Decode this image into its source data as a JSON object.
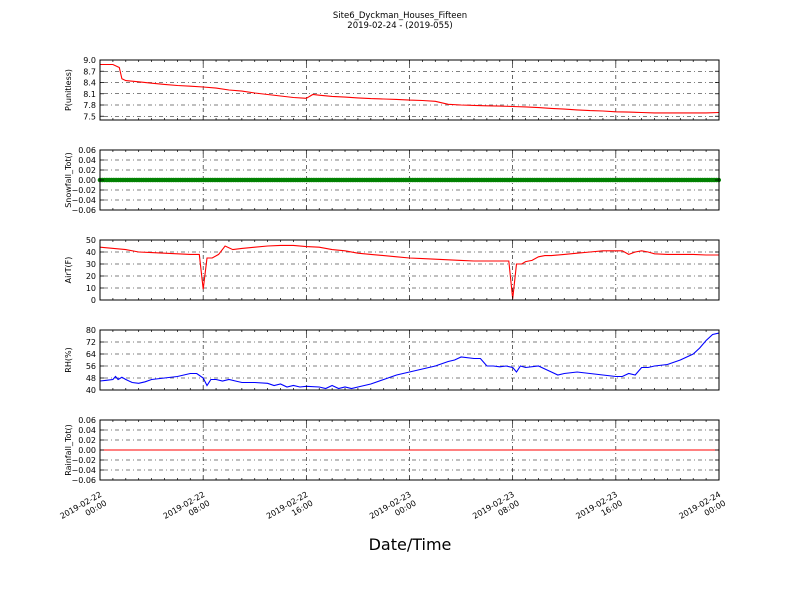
{
  "figure": {
    "title_line1": "Site6_Dyckman_Houses_Fifteen",
    "title_line2": "2019-02-24 - (2019-055)",
    "xlabel": "Date/Time"
  },
  "chart_data": [
    {
      "type": "line",
      "ylabel": "P(unitless)",
      "ylim": [
        7.4,
        9.0
      ],
      "yticks": [
        "7.5",
        "7.8",
        "8.1",
        "8.4",
        "8.7",
        "9.0"
      ],
      "ytick_values": [
        7.5,
        7.8,
        8.1,
        8.4,
        8.7,
        9.0
      ],
      "grid": true,
      "series": [
        {
          "color": "#ff0000",
          "points": [
            [
              0,
              8.88
            ],
            [
              1,
              8.88
            ],
            [
              1.5,
              8.8
            ],
            [
              1.7,
              8.5
            ],
            [
              2,
              8.45
            ],
            [
              3,
              8.42
            ],
            [
              4,
              8.38
            ],
            [
              5,
              8.35
            ],
            [
              6,
              8.32
            ],
            [
              7,
              8.3
            ],
            [
              8,
              8.28
            ],
            [
              9,
              8.25
            ],
            [
              10,
              8.2
            ],
            [
              11,
              8.17
            ],
            [
              12,
              8.12
            ],
            [
              13,
              8.08
            ],
            [
              14,
              8.04
            ],
            [
              15,
              8.0
            ],
            [
              16,
              7.98
            ],
            [
              16.5,
              8.08
            ],
            [
              17,
              8.06
            ],
            [
              18,
              8.03
            ],
            [
              19,
              8.01
            ],
            [
              20,
              7.99
            ],
            [
              21,
              7.97
            ],
            [
              22,
              7.96
            ],
            [
              23,
              7.95
            ],
            [
              24,
              7.93
            ],
            [
              25,
              7.92
            ],
            [
              26,
              7.9
            ],
            [
              27,
              7.82
            ],
            [
              28,
              7.8
            ],
            [
              29,
              7.79
            ],
            [
              30,
              7.78
            ],
            [
              31,
              7.77
            ],
            [
              32,
              7.76
            ],
            [
              33,
              7.75
            ],
            [
              34,
              7.73
            ],
            [
              35,
              7.71
            ],
            [
              36,
              7.69
            ],
            [
              37,
              7.67
            ],
            [
              38,
              7.65
            ],
            [
              39,
              7.64
            ],
            [
              40,
              7.62
            ],
            [
              41,
              7.61
            ],
            [
              42,
              7.6
            ],
            [
              43,
              7.59
            ],
            [
              44,
              7.59
            ],
            [
              45,
              7.59
            ],
            [
              46,
              7.59
            ],
            [
              47,
              7.59
            ],
            [
              48,
              7.6
            ]
          ]
        }
      ]
    },
    {
      "type": "line",
      "ylabel": "Snowfall_Tot()",
      "ylim": [
        -0.06,
        0.06
      ],
      "yticks": [
        "−0.06",
        "−0.04",
        "−0.02",
        "0.00",
        "0.02",
        "0.04",
        "0.06"
      ],
      "ytick_values": [
        -0.06,
        -0.04,
        -0.02,
        0.0,
        0.02,
        0.04,
        0.06
      ],
      "grid": true,
      "series": [
        {
          "color": "#008000",
          "marker": "circle",
          "points": [
            [
              0,
              0
            ],
            [
              48,
              0
            ]
          ]
        }
      ]
    },
    {
      "type": "line",
      "ylabel": "AirT(F)",
      "ylim": [
        0,
        50
      ],
      "yticks": [
        "0",
        "10",
        "20",
        "30",
        "40",
        "50"
      ],
      "ytick_values": [
        0,
        10,
        20,
        30,
        40,
        50
      ],
      "grid": true,
      "series": [
        {
          "color": "#ff0000",
          "points": [
            [
              0,
              44
            ],
            [
              2,
              42
            ],
            [
              3,
              40
            ],
            [
              4,
              39.5
            ],
            [
              5,
              39
            ],
            [
              6,
              38.5
            ],
            [
              7,
              38
            ],
            [
              7.7,
              38
            ],
            [
              8,
              9
            ],
            [
              8.3,
              35
            ],
            [
              8.7,
              35
            ],
            [
              9.2,
              38
            ],
            [
              9.7,
              45
            ],
            [
              10.3,
              42
            ],
            [
              11,
              43
            ],
            [
              12,
              44
            ],
            [
              13,
              45
            ],
            [
              14,
              45.5
            ],
            [
              15,
              45.5
            ],
            [
              16,
              44.5
            ],
            [
              17,
              44
            ],
            [
              18,
              42
            ],
            [
              19,
              41
            ],
            [
              20,
              39
            ],
            [
              21,
              38
            ],
            [
              22,
              37
            ],
            [
              23,
              36
            ],
            [
              24,
              35
            ],
            [
              25,
              34.5
            ],
            [
              26,
              34
            ],
            [
              27,
              33.5
            ],
            [
              28,
              33
            ],
            [
              29,
              32.5
            ],
            [
              30,
              32.5
            ],
            [
              31.7,
              32.5
            ],
            [
              32,
              1
            ],
            [
              32.3,
              30
            ],
            [
              32.7,
              30
            ],
            [
              33,
              32
            ],
            [
              33.5,
              33
            ],
            [
              34,
              36
            ],
            [
              34.5,
              37
            ],
            [
              35,
              37
            ],
            [
              36,
              38
            ],
            [
              37,
              39
            ],
            [
              38,
              40
            ],
            [
              39,
              41
            ],
            [
              40,
              41
            ],
            [
              40.5,
              41
            ],
            [
              41,
              38
            ],
            [
              41.5,
              40
            ],
            [
              42,
              41
            ],
            [
              42.5,
              40
            ],
            [
              43,
              38.5
            ],
            [
              44,
              38
            ],
            [
              45,
              38
            ],
            [
              46,
              38
            ],
            [
              47,
              37.5
            ],
            [
              48,
              37.5
            ]
          ]
        }
      ]
    },
    {
      "type": "line",
      "ylabel": "RH(%)",
      "ylim": [
        40,
        80
      ],
      "yticks": [
        "40",
        "48",
        "56",
        "64",
        "72",
        "80"
      ],
      "ytick_values": [
        40,
        48,
        56,
        64,
        72,
        80
      ],
      "grid": true,
      "series": [
        {
          "color": "#0000ff",
          "points": [
            [
              0,
              46
            ],
            [
              0.5,
              46.5
            ],
            [
              1,
              47
            ],
            [
              1.2,
              49
            ],
            [
              1.4,
              47
            ],
            [
              1.7,
              48.5
            ],
            [
              2,
              47
            ],
            [
              2.5,
              45
            ],
            [
              3,
              44.5
            ],
            [
              3.5,
              45.5
            ],
            [
              4,
              47
            ],
            [
              5,
              48
            ],
            [
              6,
              49
            ],
            [
              7,
              51
            ],
            [
              7.5,
              51
            ],
            [
              8,
              48
            ],
            [
              8.3,
              43
            ],
            [
              8.6,
              47
            ],
            [
              9,
              47
            ],
            [
              9.5,
              46
            ],
            [
              10,
              47
            ],
            [
              10.5,
              46
            ],
            [
              11,
              45
            ],
            [
              12,
              45
            ],
            [
              13,
              44.5
            ],
            [
              13.5,
              43
            ],
            [
              14,
              44
            ],
            [
              14.5,
              42
            ],
            [
              15,
              43
            ],
            [
              15.5,
              42
            ],
            [
              16,
              42.5
            ],
            [
              17,
              42
            ],
            [
              17.5,
              41
            ],
            [
              18,
              43
            ],
            [
              18.5,
              41
            ],
            [
              19,
              42
            ],
            [
              19.5,
              41
            ],
            [
              20,
              42
            ],
            [
              21,
              44
            ],
            [
              22,
              47
            ],
            [
              23,
              50
            ],
            [
              24,
              52
            ],
            [
              25,
              54
            ],
            [
              26,
              56
            ],
            [
              27,
              59
            ],
            [
              27.5,
              60
            ],
            [
              28,
              62
            ],
            [
              29,
              61
            ],
            [
              29.5,
              61
            ],
            [
              30,
              56
            ],
            [
              30.5,
              56
            ],
            [
              31,
              55.5
            ],
            [
              31.5,
              56
            ],
            [
              32,
              55
            ],
            [
              32.3,
              52
            ],
            [
              32.6,
              56
            ],
            [
              33,
              55
            ],
            [
              34,
              56
            ],
            [
              34.5,
              54
            ],
            [
              35,
              52
            ],
            [
              35.5,
              50
            ],
            [
              36,
              51
            ],
            [
              37,
              52
            ],
            [
              38,
              51
            ],
            [
              39,
              50
            ],
            [
              40,
              49
            ],
            [
              40.5,
              49
            ],
            [
              41,
              51
            ],
            [
              41.5,
              50
            ],
            [
              42,
              55
            ],
            [
              42.5,
              55
            ],
            [
              43,
              56
            ],
            [
              44,
              57
            ],
            [
              45,
              60
            ],
            [
              46,
              64
            ],
            [
              46.5,
              68
            ],
            [
              47,
              73
            ],
            [
              47.5,
              77
            ],
            [
              48,
              78
            ]
          ]
        }
      ]
    },
    {
      "type": "line",
      "ylabel": "Rainfall_Tot()",
      "ylim": [
        -0.06,
        0.06
      ],
      "yticks": [
        "−0.06",
        "−0.04",
        "−0.02",
        "0.00",
        "0.02",
        "0.04",
        "0.06"
      ],
      "ytick_values": [
        -0.06,
        -0.04,
        -0.02,
        0.0,
        0.02,
        0.04,
        0.06
      ],
      "grid": true,
      "series": [
        {
          "color": "#ff0000",
          "points": [
            [
              0,
              0
            ],
            [
              48,
              0
            ]
          ]
        }
      ]
    }
  ],
  "x_axis": {
    "unit": "hours since 2019-02-22 00:00",
    "range": [
      0,
      48
    ],
    "ticks": [
      {
        "value": 0,
        "line1": "2019-02-22",
        "line2": "00:00"
      },
      {
        "value": 8,
        "line1": "2019-02-22",
        "line2": "08:00"
      },
      {
        "value": 16,
        "line1": "2019-02-22",
        "line2": "16:00"
      },
      {
        "value": 24,
        "line1": "2019-02-23",
        "line2": "00:00"
      },
      {
        "value": 32,
        "line1": "2019-02-23",
        "line2": "08:00"
      },
      {
        "value": 40,
        "line1": "2019-02-23",
        "line2": "16:00"
      },
      {
        "value": 48,
        "line1": "2019-02-24",
        "line2": "00:00"
      }
    ]
  }
}
